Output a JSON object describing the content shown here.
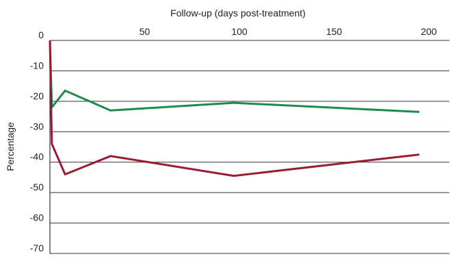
{
  "chart_data": {
    "type": "line",
    "title": "",
    "xlabel": "Follow-up (days post-treatment)",
    "ylabel": "Percentage",
    "x_axis_position": "top",
    "xlim": [
      0,
      200
    ],
    "ylim": [
      -70,
      0
    ],
    "x_ticks": [
      50,
      100,
      150,
      200
    ],
    "y_ticks": [
      0,
      -10,
      -20,
      -30,
      -40,
      -50,
      -60,
      -70
    ],
    "grid": "horizontal",
    "legend": "none",
    "series": [
      {
        "color": "#1b8a4c",
        "points": [
          [
            0,
            0
          ],
          [
            1,
            -22
          ],
          [
            8,
            -16.5
          ],
          [
            32,
            -23
          ],
          [
            97,
            -20.5
          ],
          [
            195,
            -23.5
          ]
        ]
      },
      {
        "color": "#9b1b30",
        "points": [
          [
            0,
            0
          ],
          [
            1,
            -34
          ],
          [
            8,
            -44
          ],
          [
            32,
            -38
          ],
          [
            97,
            -44.5
          ],
          [
            195,
            -37.5
          ]
        ]
      }
    ]
  }
}
